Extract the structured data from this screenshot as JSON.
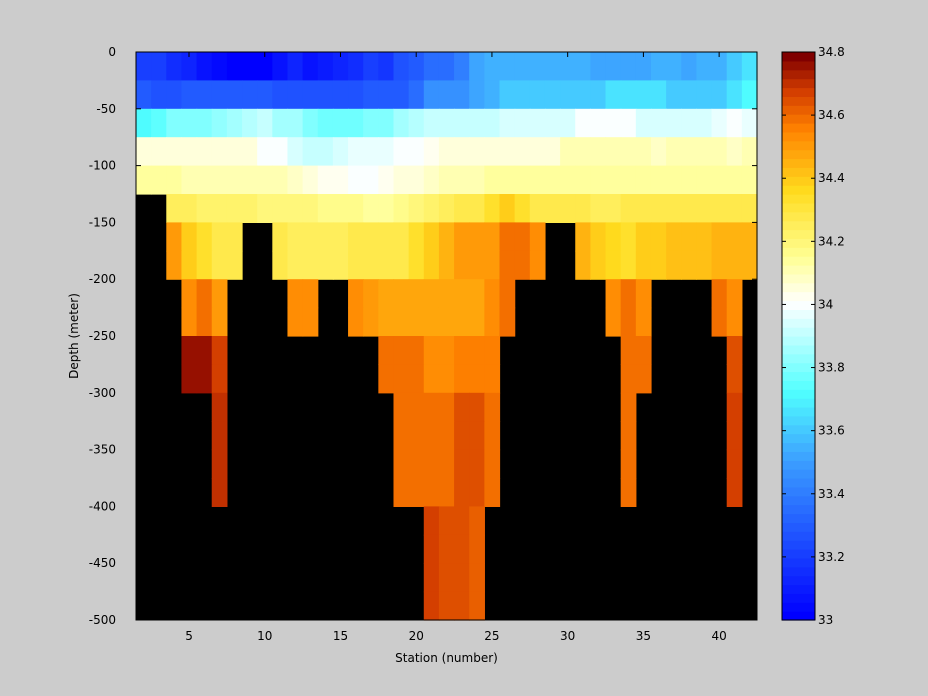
{
  "chart_data": {
    "type": "heatmap",
    "title": "",
    "xlabel": "Station (number)",
    "ylabel": "Depth (meter)",
    "xlim": [
      1.5,
      42.5
    ],
    "ylim": [
      -500,
      0
    ],
    "xticks": [
      5,
      10,
      15,
      20,
      25,
      30,
      35,
      40
    ],
    "yticks": [
      0,
      -50,
      -100,
      -150,
      -200,
      -250,
      -300,
      -350,
      -400,
      -450,
      -500
    ],
    "colorbar": {
      "label": "",
      "range": [
        33,
        34.8
      ],
      "ticks": [
        33,
        33.2,
        33.4,
        33.6,
        33.8,
        34,
        34.2,
        34.4,
        34.6,
        34.8
      ],
      "colormap": "jet-like (blue-cyan-white-yellow-orange-darkred)"
    },
    "background_color_no_data": "#000000",
    "grid": false,
    "stations": [
      2,
      3,
      4,
      5,
      6,
      7,
      8,
      9,
      10,
      11,
      12,
      13,
      14,
      15,
      16,
      17,
      18,
      19,
      20,
      21,
      22,
      23,
      24,
      25,
      26,
      27,
      28,
      29,
      30,
      31,
      32,
      33,
      34,
      35,
      36,
      37,
      38,
      39,
      40,
      41,
      42
    ],
    "depths": [
      -25,
      -50,
      -75,
      -100,
      -125,
      -150,
      -175,
      -200,
      -225,
      -250,
      -275,
      -300,
      -325,
      -350,
      -375,
      -400,
      -425,
      -450,
      -475,
      -500
    ],
    "cell_height_m": 25,
    "rows": [
      {
        "depth": -25,
        "values": [
          33.2,
          33.2,
          33.15,
          33.1,
          33.05,
          33.02,
          33.0,
          33.0,
          33.0,
          33.05,
          33.1,
          33.05,
          33.08,
          33.12,
          33.15,
          33.2,
          33.18,
          33.25,
          33.3,
          33.35,
          33.35,
          33.4,
          33.5,
          33.55,
          33.55,
          33.55,
          33.55,
          33.55,
          33.55,
          33.55,
          33.5,
          33.5,
          33.5,
          33.5,
          33.55,
          33.55,
          33.5,
          33.55,
          33.55,
          33.6,
          33.65
        ]
      },
      {
        "depth": -50,
        "values": [
          33.3,
          33.25,
          33.25,
          33.3,
          33.3,
          33.3,
          33.3,
          33.3,
          33.3,
          33.25,
          33.25,
          33.25,
          33.25,
          33.25,
          33.25,
          33.3,
          33.3,
          33.3,
          33.35,
          33.45,
          33.45,
          33.45,
          33.5,
          33.55,
          33.6,
          33.6,
          33.6,
          33.6,
          33.6,
          33.6,
          33.6,
          33.65,
          33.65,
          33.65,
          33.65,
          33.6,
          33.6,
          33.6,
          33.6,
          33.65,
          33.7
        ]
      },
      {
        "depth": -75,
        "values": [
          33.7,
          33.75,
          33.8,
          33.8,
          33.8,
          33.82,
          33.85,
          33.88,
          33.9,
          33.85,
          33.85,
          33.8,
          33.78,
          33.78,
          33.78,
          33.8,
          33.8,
          33.85,
          33.88,
          33.9,
          33.92,
          33.92,
          33.92,
          33.92,
          33.95,
          33.95,
          33.95,
          33.95,
          33.95,
          34.0,
          34.0,
          34.0,
          34.0,
          33.95,
          33.95,
          33.95,
          33.95,
          33.95,
          33.97,
          34.0,
          33.98
        ]
      },
      {
        "depth": -100,
        "values": [
          34.05,
          34.05,
          34.05,
          34.05,
          34.05,
          34.05,
          34.05,
          34.05,
          34.0,
          34.0,
          33.95,
          33.9,
          33.9,
          33.95,
          33.97,
          33.97,
          33.97,
          34.0,
          34.0,
          34.02,
          34.05,
          34.05,
          34.05,
          34.05,
          34.05,
          34.05,
          34.05,
          34.05,
          34.1,
          34.1,
          34.1,
          34.1,
          34.1,
          34.1,
          34.08,
          34.1,
          34.1,
          34.1,
          34.1,
          34.08,
          34.1
        ]
      },
      {
        "depth": -125,
        "values": [
          34.15,
          34.15,
          34.15,
          34.12,
          34.12,
          34.12,
          34.12,
          34.12,
          34.1,
          34.1,
          34.08,
          34.05,
          34.03,
          34.02,
          34.0,
          34.0,
          34.02,
          34.05,
          34.05,
          34.08,
          34.1,
          34.12,
          34.12,
          34.15,
          34.15,
          34.15,
          34.15,
          34.15,
          34.15,
          34.15,
          34.15,
          34.15,
          34.15,
          34.15,
          34.15,
          34.15,
          34.15,
          34.15,
          34.15,
          34.15,
          34.15
        ]
      },
      {
        "depth": -150,
        "values": [
          null,
          null,
          34.25,
          34.25,
          34.22,
          34.22,
          34.22,
          34.22,
          34.2,
          34.2,
          34.2,
          34.2,
          34.18,
          34.18,
          34.18,
          34.15,
          34.15,
          34.18,
          34.2,
          34.22,
          34.25,
          34.28,
          34.3,
          34.35,
          34.4,
          34.35,
          34.3,
          34.3,
          34.3,
          34.3,
          34.25,
          34.25,
          34.28,
          34.3,
          34.3,
          34.3,
          34.28,
          34.28,
          34.3,
          34.28,
          34.3
        ]
      },
      {
        "depth": -175,
        "values": [
          null,
          null,
          34.5,
          34.4,
          34.35,
          34.3,
          34.3,
          null,
          null,
          34.3,
          34.25,
          34.25,
          34.25,
          34.25,
          34.28,
          34.28,
          34.28,
          34.3,
          34.35,
          34.4,
          34.45,
          34.5,
          34.5,
          34.5,
          34.6,
          34.6,
          34.55,
          null,
          null,
          34.45,
          34.4,
          34.38,
          34.35,
          34.4,
          34.4,
          34.42,
          34.42,
          34.42,
          34.45,
          34.45,
          34.45
        ]
      },
      {
        "depth": -200,
        "values": [
          null,
          null,
          34.5,
          34.4,
          34.35,
          34.3,
          34.3,
          null,
          null,
          34.3,
          34.25,
          34.25,
          34.25,
          34.25,
          34.28,
          34.28,
          34.28,
          34.3,
          34.35,
          34.4,
          34.45,
          34.5,
          34.5,
          34.5,
          34.6,
          34.6,
          34.55,
          null,
          null,
          34.45,
          34.4,
          34.38,
          34.35,
          34.4,
          34.4,
          34.42,
          34.42,
          34.42,
          34.45,
          34.45,
          34.45
        ]
      },
      {
        "depth": -225,
        "values": [
          null,
          null,
          null,
          34.55,
          34.6,
          34.5,
          null,
          null,
          null,
          null,
          34.55,
          34.55,
          null,
          null,
          34.55,
          34.5,
          34.48,
          34.48,
          34.48,
          34.48,
          34.48,
          34.48,
          34.48,
          34.55,
          34.6,
          null,
          null,
          null,
          null,
          null,
          null,
          34.55,
          34.6,
          34.55,
          null,
          null,
          null,
          null,
          34.6,
          34.55,
          null
        ]
      },
      {
        "depth": -250,
        "values": [
          null,
          null,
          null,
          34.55,
          34.6,
          34.5,
          null,
          null,
          null,
          null,
          34.55,
          34.55,
          null,
          null,
          34.55,
          34.5,
          34.48,
          34.48,
          34.48,
          34.48,
          34.48,
          34.48,
          34.48,
          34.55,
          34.6,
          null,
          null,
          null,
          null,
          null,
          null,
          34.55,
          34.6,
          34.55,
          null,
          null,
          null,
          null,
          34.6,
          34.55,
          null
        ]
      },
      {
        "depth": -275,
        "values": [
          null,
          null,
          null,
          34.78,
          34.78,
          34.68,
          null,
          null,
          null,
          null,
          null,
          null,
          null,
          null,
          null,
          null,
          34.6,
          34.6,
          34.6,
          34.55,
          34.55,
          34.58,
          34.58,
          34.58,
          null,
          null,
          null,
          null,
          null,
          null,
          null,
          null,
          34.6,
          34.6,
          null,
          null,
          null,
          null,
          null,
          34.65,
          null
        ]
      },
      {
        "depth": -300,
        "values": [
          null,
          null,
          null,
          34.78,
          34.78,
          34.68,
          null,
          null,
          null,
          null,
          null,
          null,
          null,
          null,
          null,
          null,
          34.6,
          34.6,
          34.6,
          34.55,
          34.55,
          34.58,
          34.58,
          34.58,
          null,
          null,
          null,
          null,
          null,
          null,
          null,
          null,
          34.6,
          34.6,
          null,
          null,
          null,
          null,
          null,
          34.65,
          null
        ]
      },
      {
        "depth": -325,
        "values": [
          null,
          null,
          null,
          null,
          null,
          34.72,
          null,
          null,
          null,
          null,
          null,
          null,
          null,
          null,
          null,
          null,
          null,
          34.6,
          34.6,
          34.6,
          34.6,
          34.65,
          34.65,
          34.6,
          null,
          null,
          null,
          null,
          null,
          null,
          null,
          null,
          34.6,
          null,
          null,
          null,
          null,
          null,
          null,
          34.68,
          null
        ]
      },
      {
        "depth": -350,
        "values": [
          null,
          null,
          null,
          null,
          null,
          34.72,
          null,
          null,
          null,
          null,
          null,
          null,
          null,
          null,
          null,
          null,
          null,
          34.6,
          34.6,
          34.6,
          34.6,
          34.65,
          34.65,
          34.6,
          null,
          null,
          null,
          null,
          null,
          null,
          null,
          null,
          34.6,
          null,
          null,
          null,
          null,
          null,
          null,
          34.68,
          null
        ]
      },
      {
        "depth": -375,
        "values": [
          null,
          null,
          null,
          null,
          null,
          34.72,
          null,
          null,
          null,
          null,
          null,
          null,
          null,
          null,
          null,
          null,
          null,
          34.6,
          34.6,
          34.6,
          34.6,
          34.65,
          34.65,
          34.6,
          null,
          null,
          null,
          null,
          null,
          null,
          null,
          null,
          34.6,
          null,
          null,
          null,
          null,
          null,
          null,
          34.68,
          null
        ]
      },
      {
        "depth": -400,
        "values": [
          null,
          null,
          null,
          null,
          null,
          34.72,
          null,
          null,
          null,
          null,
          null,
          null,
          null,
          null,
          null,
          null,
          null,
          34.6,
          34.6,
          34.6,
          34.6,
          34.65,
          34.65,
          34.6,
          null,
          null,
          null,
          null,
          null,
          null,
          null,
          null,
          34.6,
          null,
          null,
          null,
          null,
          null,
          null,
          34.68,
          null
        ]
      },
      {
        "depth": -425,
        "values": [
          null,
          null,
          null,
          null,
          null,
          null,
          null,
          null,
          null,
          null,
          null,
          null,
          null,
          null,
          null,
          null,
          null,
          null,
          null,
          34.68,
          34.65,
          34.65,
          34.62,
          null,
          null,
          null,
          null,
          null,
          null,
          null,
          null,
          null,
          null,
          null,
          null,
          null,
          null,
          null,
          null,
          null,
          null
        ]
      },
      {
        "depth": -450,
        "values": [
          null,
          null,
          null,
          null,
          null,
          null,
          null,
          null,
          null,
          null,
          null,
          null,
          null,
          null,
          null,
          null,
          null,
          null,
          null,
          34.68,
          34.65,
          34.65,
          34.62,
          null,
          null,
          null,
          null,
          null,
          null,
          null,
          null,
          null,
          null,
          null,
          null,
          null,
          null,
          null,
          null,
          null,
          null
        ]
      },
      {
        "depth": -475,
        "values": [
          null,
          null,
          null,
          null,
          null,
          null,
          null,
          null,
          null,
          null,
          null,
          null,
          null,
          null,
          null,
          null,
          null,
          null,
          null,
          34.68,
          34.65,
          34.65,
          34.62,
          null,
          null,
          null,
          null,
          null,
          null,
          null,
          null,
          null,
          null,
          null,
          null,
          null,
          null,
          null,
          null,
          null,
          null
        ]
      },
      {
        "depth": -500,
        "values": [
          null,
          null,
          null,
          null,
          null,
          null,
          null,
          null,
          null,
          null,
          null,
          null,
          null,
          null,
          null,
          null,
          null,
          null,
          null,
          34.68,
          34.65,
          34.65,
          34.62,
          null,
          null,
          null,
          null,
          null,
          null,
          null,
          null,
          null,
          null,
          null,
          null,
          null,
          null,
          null,
          null,
          null,
          null
        ]
      }
    ]
  }
}
